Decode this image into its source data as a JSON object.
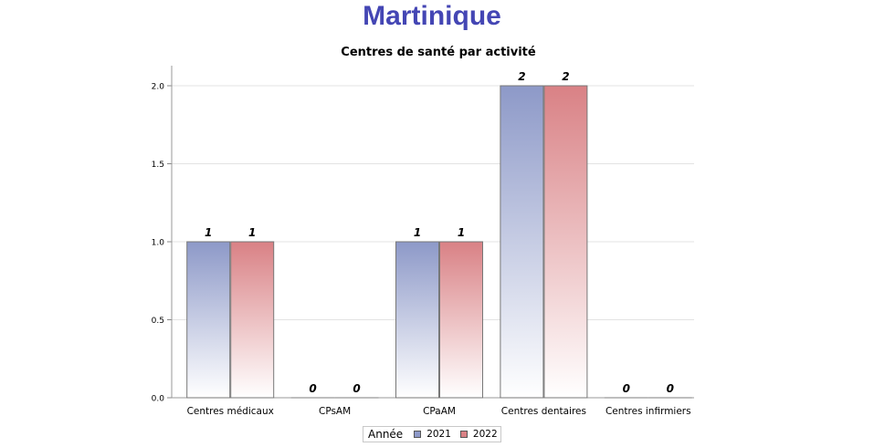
{
  "page": {
    "title": "Martinique"
  },
  "chart_data": {
    "type": "bar",
    "title": "Centres de santé par activité",
    "categories": [
      "Centres médicaux",
      "CPsAM",
      "CPaAM",
      "Centres dentaires",
      "Centres infirmiers"
    ],
    "series": [
      {
        "name": "2021",
        "values": [
          1,
          0,
          1,
          2,
          0
        ],
        "color": "#8d99c8"
      },
      {
        "name": "2022",
        "values": [
          1,
          0,
          1,
          2,
          0
        ],
        "color": "#d98185"
      }
    ],
    "ylim": [
      0,
      2
    ],
    "yticks": [
      "0.0",
      "0.5",
      "1.0",
      "1.5",
      "2.0"
    ],
    "grid": true,
    "legend": {
      "title": "Année",
      "placement": "bottom-center"
    }
  }
}
